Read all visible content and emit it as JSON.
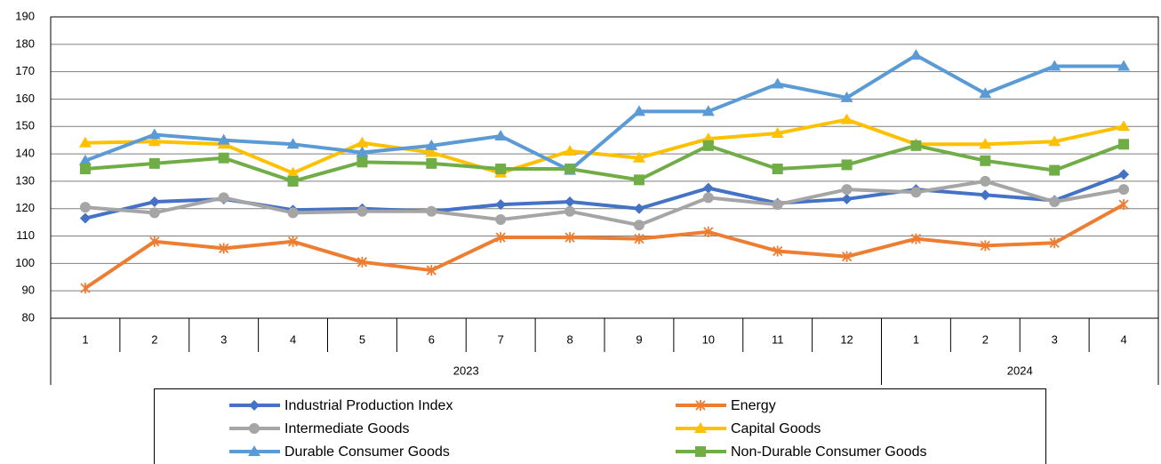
{
  "chart_data": {
    "type": "line",
    "groups": [
      {
        "label": "2023",
        "categories": [
          "1",
          "2",
          "3",
          "4",
          "5",
          "6",
          "7",
          "8",
          "9",
          "10",
          "11",
          "12"
        ]
      },
      {
        "label": "2024",
        "categories": [
          "1",
          "2",
          "3",
          "4"
        ]
      }
    ],
    "ylim": [
      80,
      190
    ],
    "yticks": [
      80,
      90,
      100,
      110,
      120,
      130,
      140,
      150,
      160,
      170,
      180,
      190
    ],
    "grid": true,
    "legend": "bottom",
    "series": [
      {
        "name": "Industrial Production Index",
        "color": "#4472c4",
        "marker": "diamond",
        "values": [
          116.5,
          122.5,
          123.5,
          119.5,
          120,
          119,
          121.5,
          122.5,
          120,
          127.5,
          122,
          123.5,
          127,
          125,
          123,
          132.5
        ]
      },
      {
        "name": "Energy",
        "color": "#ed7d31",
        "marker": "star",
        "values": [
          91,
          108,
          105.5,
          108,
          100.5,
          97.5,
          109.5,
          109.5,
          109,
          111.5,
          104.5,
          102.5,
          109,
          106.5,
          107.5,
          121.5
        ]
      },
      {
        "name": "Intermediate Goods",
        "color": "#a5a5a5",
        "marker": "circle",
        "values": [
          120.5,
          118.5,
          124,
          118.5,
          119,
          119,
          116,
          119,
          114,
          124,
          121.5,
          127,
          126,
          130,
          122.5,
          127
        ]
      },
      {
        "name": "Capital Goods",
        "color": "#ffc000",
        "marker": "triangle",
        "values": [
          144,
          144.5,
          143.5,
          133,
          144,
          140.5,
          133,
          141,
          138.5,
          145.5,
          147.5,
          152.5,
          143.5,
          143.5,
          144.5,
          150
        ]
      },
      {
        "name": "Durable Consumer Goods",
        "color": "#5b9bd5",
        "marker": "triangle",
        "values": [
          137.5,
          147,
          145,
          143.5,
          140.5,
          143,
          146.5,
          134,
          155.5,
          155.5,
          165.5,
          160.5,
          176,
          162,
          172,
          172
        ]
      },
      {
        "name": "Non-Durable Consumer Goods",
        "color": "#70ad47",
        "marker": "square",
        "values": [
          134.5,
          136.5,
          138.5,
          130,
          137,
          136.5,
          134.5,
          134.5,
          130.5,
          143,
          134.5,
          136,
          143,
          137.5,
          134,
          143.5
        ]
      }
    ]
  }
}
